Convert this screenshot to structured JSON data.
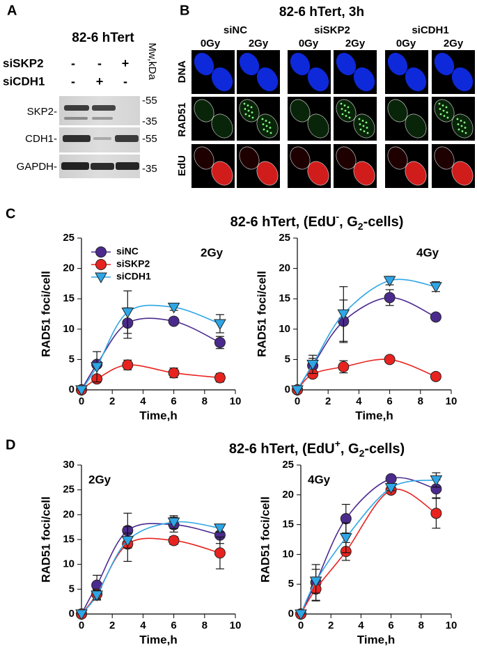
{
  "panel_a": {
    "label": "A",
    "title": "82-6 hTert",
    "mw_label": "Mw,kDa",
    "rows": [
      {
        "name": "siSKP2",
        "signs": [
          "-",
          "-",
          "+"
        ]
      },
      {
        "name": "siCDH1",
        "signs": [
          "-",
          "+",
          "-"
        ]
      }
    ],
    "blots": [
      {
        "name": "SKP2-",
        "markers": [
          "-55",
          "-35"
        ]
      },
      {
        "name": "CDH1-",
        "markers": [
          "-55"
        ]
      },
      {
        "name": "GAPDH-",
        "markers": [
          "-35"
        ]
      }
    ]
  },
  "panel_b": {
    "label": "B",
    "title": "82-6 hTert, 3h",
    "groups": [
      {
        "name": "siNC",
        "doses": [
          "0Gy",
          "2Gy"
        ]
      },
      {
        "name": "siSKP2",
        "doses": [
          "0Gy",
          "2Gy"
        ]
      },
      {
        "name": "siCDH1",
        "doses": [
          "0Gy",
          "2Gy"
        ]
      }
    ],
    "rows": [
      "DNA",
      "RAD51",
      "EdU"
    ]
  },
  "panel_c": {
    "label": "C",
    "title": [
      "82-6 hTert, (EdU",
      "-",
      ", G",
      "2",
      "-cells)"
    ]
  },
  "panel_d": {
    "label": "D",
    "title": [
      "82-6 hTert, (EdU",
      "+",
      ", G",
      "2",
      "-cells)"
    ]
  },
  "chart_data": [
    {
      "type": "line",
      "x": [
        0,
        1,
        3,
        6,
        9
      ],
      "xlabel": "Time,h",
      "ylabel": "RAD51 foci/cell",
      "xlim": [
        0,
        10
      ],
      "xticks": [
        0,
        2,
        4,
        6,
        8,
        10
      ],
      "ylim": [
        0,
        25
      ],
      "yticks": [
        0,
        5,
        10,
        15,
        20,
        25
      ],
      "annotation": "2Gy",
      "annotation_corner": "upper right",
      "legend": "upper left",
      "series": [
        {
          "name": "siNC",
          "color": "#4b2a8e",
          "marker": "circle",
          "values": [
            0,
            4.2,
            11,
            11.3,
            7.8
          ],
          "errors": [
            0,
            0.5,
            2.5,
            0.5,
            1
          ]
        },
        {
          "name": "siSKP2",
          "color": "#e8231f",
          "marker": "circle",
          "values": [
            0,
            1.8,
            4.1,
            2.8,
            2.0
          ],
          "errors": [
            0,
            0.5,
            0.8,
            0.8,
            0.7
          ]
        },
        {
          "name": "siCDH1",
          "color": "#2ea6e6",
          "marker": "triangle-down",
          "values": [
            0,
            3.8,
            12.8,
            13.6,
            10.9
          ],
          "errors": [
            0,
            2.5,
            3.5,
            0.5,
            1.5
          ]
        }
      ]
    },
    {
      "type": "line",
      "x": [
        0,
        1,
        3,
        6,
        9
      ],
      "xlabel": "Time,h",
      "ylabel": "RAD51 foci/cell",
      "xlim": [
        0,
        10
      ],
      "xticks": [
        0,
        2,
        4,
        6,
        8,
        10
      ],
      "ylim": [
        0,
        25
      ],
      "yticks": [
        0,
        5,
        10,
        15,
        20,
        25
      ],
      "annotation": "4Gy",
      "annotation_corner": "upper right",
      "series": [
        {
          "color": "#4b2a8e",
          "marker": "circle",
          "values": [
            0,
            4,
            11.3,
            15.2,
            12
          ],
          "errors": [
            0,
            1.2,
            3.5,
            1.3,
            0.5
          ]
        },
        {
          "color": "#e8231f",
          "marker": "circle",
          "values": [
            0,
            2.6,
            3.8,
            5,
            2.2
          ],
          "errors": [
            0,
            0.5,
            1,
            0.4,
            0.3
          ]
        },
        {
          "color": "#2ea6e6",
          "marker": "triangle-down",
          "values": [
            0,
            4.2,
            12.5,
            18,
            17
          ],
          "errors": [
            0,
            1.5,
            4.5,
            0.7,
            0.8
          ]
        }
      ]
    },
    {
      "type": "line",
      "x": [
        0,
        1,
        3,
        6,
        9
      ],
      "xlabel": "Time,h",
      "ylabel": "RAD51 foci/cell",
      "xlim": [
        0,
        10
      ],
      "xticks": [
        0,
        2,
        4,
        6,
        8,
        10
      ],
      "ylim": [
        0,
        30
      ],
      "yticks": [
        0,
        5,
        10,
        15,
        20,
        25,
        30
      ],
      "annotation": "2Gy",
      "annotation_corner": "upper left",
      "series": [
        {
          "color": "#4b2a8e",
          "marker": "circle",
          "values": [
            0,
            5.8,
            16.8,
            18,
            15.9
          ],
          "errors": [
            0,
            2,
            3.5,
            1.5,
            1.7
          ]
        },
        {
          "color": "#e8231f",
          "marker": "circle",
          "values": [
            0,
            4,
            14.1,
            14.8,
            12.3
          ],
          "errors": [
            0,
            1,
            3.5,
            0.8,
            3.2
          ]
        },
        {
          "color": "#2ea6e6",
          "marker": "triangle-down",
          "values": [
            0,
            3.8,
            14.8,
            18.5,
            17.3
          ],
          "errors": [
            0,
            1,
            1.5,
            1.3,
            0.8
          ]
        }
      ]
    },
    {
      "type": "line",
      "x": [
        0,
        1,
        3,
        6,
        9
      ],
      "xlabel": "Time,h",
      "ylabel": "RAD51 foci/cell",
      "xlim": [
        0,
        10
      ],
      "xticks": [
        0,
        2,
        4,
        6,
        8,
        10
      ],
      "ylim": [
        0,
        25
      ],
      "yticks": [
        0,
        5,
        10,
        15,
        20,
        25
      ],
      "annotation": "4Gy",
      "annotation_corner": "upper left",
      "series": [
        {
          "color": "#4b2a8e",
          "marker": "circle",
          "values": [
            0,
            5.3,
            16,
            22.7,
            21
          ],
          "errors": [
            0,
            3,
            2.4,
            0.3,
            1.5
          ]
        },
        {
          "color": "#e8231f",
          "marker": "circle",
          "values": [
            0,
            4.2,
            10.5,
            20.8,
            16.9
          ],
          "errors": [
            0,
            2,
            1.5,
            0.5,
            2.5
          ]
        },
        {
          "color": "#2ea6e6",
          "marker": "triangle-down",
          "values": [
            0,
            5.5,
            12.8,
            21.2,
            22.5
          ],
          "errors": [
            0,
            2,
            2.5,
            0.5,
            1.2
          ]
        }
      ]
    }
  ]
}
